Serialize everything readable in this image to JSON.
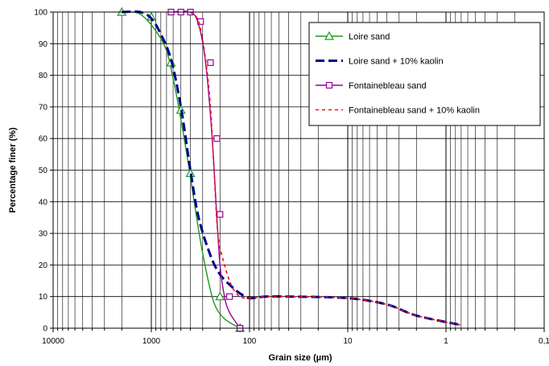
{
  "chart_data": {
    "type": "line",
    "xlabel": "Grain size (µm)",
    "ylabel": "Percentage finer (%)",
    "xscale": "log",
    "xaxis_reversed": true,
    "xlim": [
      10000,
      0.1
    ],
    "ylim": [
      0,
      100
    ],
    "grid": true,
    "legend_position": "top-right",
    "x_tick_labels": [
      {
        "value": 10000,
        "label": "10000"
      },
      {
        "value": 1000,
        "label": "1000"
      },
      {
        "value": 100,
        "label": "100"
      },
      {
        "value": 10,
        "label": "10"
      },
      {
        "value": 1,
        "label": "1"
      },
      {
        "value": 0.1,
        "label": "0,1"
      }
    ],
    "y_tick_labels": [
      "0",
      "10",
      "20",
      "30",
      "40",
      "50",
      "60",
      "70",
      "80",
      "90",
      "100"
    ],
    "series": [
      {
        "name": "Loire sand",
        "color": "#1a9a1a",
        "line_style": "solid",
        "marker": "triangle",
        "points": [
          [
            2000,
            100
          ],
          [
            1250,
            99
          ],
          [
            750,
            90
          ],
          [
            600,
            79
          ],
          [
            500,
            66
          ],
          [
            420,
            52
          ],
          [
            330,
            31
          ],
          [
            280,
            19
          ],
          [
            230,
            8
          ],
          [
            180,
            3
          ],
          [
            125,
            0
          ]
        ],
        "markers": [
          [
            2000,
            100
          ],
          [
            1000,
            98.5
          ],
          [
            630,
            84
          ],
          [
            500,
            69
          ],
          [
            400,
            49
          ],
          [
            200,
            10
          ],
          [
            125,
            0
          ]
        ]
      },
      {
        "name": "Loire sand + 10% kaolin",
        "color": "#00008b",
        "line_style": "dash",
        "marker": "none",
        "points": [
          [
            2000,
            100
          ],
          [
            1300,
            100
          ],
          [
            1000,
            98
          ],
          [
            800,
            93
          ],
          [
            630,
            85
          ],
          [
            500,
            70
          ],
          [
            400,
            50
          ],
          [
            330,
            35
          ],
          [
            250,
            23
          ],
          [
            200,
            17
          ],
          [
            150,
            13
          ],
          [
            125,
            11
          ],
          [
            100,
            9.5
          ],
          [
            70,
            10
          ],
          [
            40,
            10
          ],
          [
            10,
            9.5
          ],
          [
            4,
            7.5
          ],
          [
            2,
            4
          ],
          [
            0.7,
            1
          ]
        ]
      },
      {
        "name": "Fontainebleau sand",
        "color": "#990099",
        "line_style": "solid",
        "marker": "square",
        "points": [
          [
            630,
            100
          ],
          [
            400,
            100
          ],
          [
            330,
            96
          ],
          [
            280,
            84
          ],
          [
            240,
            60
          ],
          [
            215,
            35
          ],
          [
            200,
            20
          ],
          [
            180,
            10
          ],
          [
            160,
            5
          ],
          [
            125,
            0
          ]
        ],
        "markers": [
          [
            630,
            100
          ],
          [
            500,
            100
          ],
          [
            400,
            100
          ],
          [
            315,
            97
          ],
          [
            250,
            84
          ],
          [
            215,
            60
          ],
          [
            200,
            36
          ],
          [
            160,
            10
          ],
          [
            125,
            0
          ]
        ]
      },
      {
        "name": "Fontainebleau sand + 10% kaolin",
        "color": "#ee1111",
        "line_style": "dot",
        "marker": "none",
        "points": [
          [
            400,
            100
          ],
          [
            330,
            97
          ],
          [
            280,
            85
          ],
          [
            250,
            70
          ],
          [
            230,
            50
          ],
          [
            210,
            30
          ],
          [
            180,
            20
          ],
          [
            150,
            13
          ],
          [
            125,
            10
          ],
          [
            100,
            9.5
          ],
          [
            70,
            10
          ],
          [
            40,
            10
          ],
          [
            10,
            9.5
          ],
          [
            4,
            7.5
          ],
          [
            2,
            4
          ],
          [
            0.7,
            1
          ]
        ]
      }
    ]
  }
}
